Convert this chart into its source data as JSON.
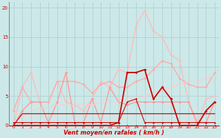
{
  "xlabel": "Vent moyen/en rafales ( km/h )",
  "background_color": "#cce8e8",
  "grid_color": "#aacccc",
  "xlim": [
    -0.5,
    23.5
  ],
  "ylim": [
    0,
    21
  ],
  "yticks": [
    0,
    5,
    10,
    15,
    20
  ],
  "xticks": [
    0,
    1,
    2,
    3,
    4,
    5,
    6,
    7,
    8,
    9,
    10,
    11,
    12,
    13,
    14,
    15,
    16,
    17,
    18,
    19,
    20,
    21,
    22,
    23
  ],
  "series": [
    {
      "y": [
        0.0,
        6.5,
        9.0,
        4.0,
        4.0,
        7.5,
        4.0,
        3.5,
        2.5,
        4.5,
        7.5,
        6.5,
        9.5,
        9.0,
        17.0,
        19.5,
        16.0,
        15.0,
        12.0,
        11.0,
        4.0,
        0.0,
        4.5,
        5.0
      ],
      "color": "#ffbbbb",
      "linewidth": 1.0,
      "marker": "D",
      "markersize": 2.0
    },
    {
      "y": [
        2.5,
        6.5,
        4.0,
        4.0,
        4.0,
        7.5,
        7.5,
        7.5,
        7.0,
        5.5,
        7.0,
        7.5,
        6.5,
        6.5,
        7.5,
        8.0,
        9.5,
        11.0,
        10.5,
        8.0,
        7.0,
        6.5,
        6.5,
        9.0
      ],
      "color": "#ffaaaa",
      "linewidth": 1.0,
      "marker": "D",
      "markersize": 2.0
    },
    {
      "y": [
        0.0,
        2.5,
        4.0,
        4.0,
        0.5,
        4.0,
        9.0,
        0.5,
        0.5,
        4.5,
        0.5,
        6.5,
        4.0,
        3.5,
        4.0,
        4.0,
        4.0,
        4.0,
        4.0,
        4.0,
        4.0,
        0.5,
        0.5,
        4.0
      ],
      "color": "#ff9999",
      "linewidth": 1.0,
      "marker": "D",
      "markersize": 2.0
    },
    {
      "y": [
        0.5,
        1.5,
        2.5,
        3.0,
        3.0,
        3.5,
        3.5,
        3.5,
        3.5,
        3.5,
        4.0,
        4.0,
        4.0,
        4.5,
        4.5,
        5.0,
        5.5,
        6.0,
        6.5,
        7.0,
        7.5,
        7.5,
        8.0,
        8.5
      ],
      "color": "#ffcccc",
      "linewidth": 0.9,
      "marker": null,
      "markersize": 0
    },
    {
      "y": [
        0.0,
        0.0,
        0.0,
        0.0,
        0.0,
        0.0,
        0.0,
        0.0,
        0.0,
        0.0,
        0.0,
        0.0,
        0.5,
        9.0,
        9.0,
        9.5,
        4.5,
        6.5,
        4.5,
        0.0,
        0.0,
        0.0,
        2.5,
        4.0
      ],
      "color": "#cc0000",
      "linewidth": 1.3,
      "marker": "D",
      "markersize": 2.0
    },
    {
      "y": [
        0.0,
        2.0,
        2.0,
        2.0,
        2.0,
        2.0,
        2.0,
        2.0,
        2.0,
        2.0,
        2.0,
        2.0,
        2.0,
        2.0,
        2.0,
        2.0,
        2.0,
        2.0,
        2.0,
        2.0,
        2.0,
        2.0,
        2.0,
        2.0
      ],
      "color": "#cc0000",
      "linewidth": 0.9,
      "marker": null,
      "markersize": 0
    },
    {
      "y": [
        0.0,
        0.0,
        0.0,
        0.0,
        0.0,
        0.0,
        0.0,
        0.0,
        0.0,
        0.0,
        0.0,
        0.0,
        0.0,
        0.0,
        0.0,
        0.0,
        0.0,
        0.0,
        0.0,
        0.0,
        0.0,
        0.0,
        0.0,
        0.0
      ],
      "color": "#cc0000",
      "linewidth": 0.8,
      "marker": "D",
      "markersize": 1.5
    },
    {
      "y": [
        0.5,
        0.5,
        0.5,
        0.5,
        0.5,
        0.5,
        0.5,
        0.5,
        0.5,
        0.5,
        0.5,
        0.5,
        0.5,
        4.0,
        4.5,
        0.5,
        0.5,
        0.5,
        0.5,
        0.5,
        0.5,
        0.5,
        0.5,
        0.5
      ],
      "color": "#cc0000",
      "linewidth": 0.8,
      "marker": "D",
      "markersize": 1.5
    }
  ]
}
